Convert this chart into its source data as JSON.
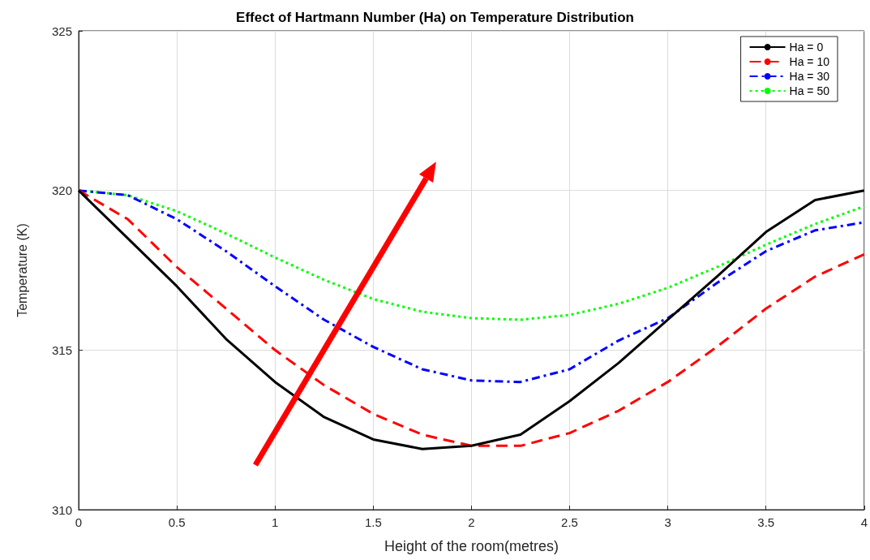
{
  "chart_data": {
    "type": "line",
    "title": "Effect of Hartmann Number (Ha) on Temperature Distribution",
    "xlabel": "Height of the room(metres)",
    "ylabel": "Temperature (K)",
    "x": [
      0,
      0.25,
      0.5,
      0.75,
      1,
      1.25,
      1.5,
      1.75,
      2,
      2.25,
      2.5,
      2.75,
      3,
      3.25,
      3.5,
      3.75,
      4
    ],
    "series": [
      {
        "name": "Ha = 0",
        "color": "#000000",
        "line_style": "solid",
        "values": [
          320,
          318.5,
          317.0,
          315.35,
          314.0,
          312.9,
          312.2,
          311.9,
          312.0,
          312.35,
          313.4,
          314.6,
          315.95,
          317.3,
          318.7,
          319.7,
          320
        ]
      },
      {
        "name": "Ha = 10",
        "color": "#ff0000",
        "line_style": "dashed",
        "values": [
          320,
          319.1,
          317.6,
          316.3,
          315.0,
          313.9,
          313.0,
          312.35,
          312.0,
          312.0,
          312.4,
          313.1,
          314.0,
          315.1,
          316.3,
          317.3,
          318.0
        ]
      },
      {
        "name": "Ha = 30",
        "color": "#0000ff",
        "line_style": "dashed",
        "values": [
          320,
          319.85,
          319.1,
          318.1,
          317.0,
          315.95,
          315.1,
          314.4,
          314.05,
          314.0,
          314.4,
          315.3,
          316.0,
          317.1,
          318.1,
          318.75,
          319.0
        ]
      },
      {
        "name": "Ha = 50",
        "color": "#00ff00",
        "line_style": "dotted",
        "values": [
          320,
          319.85,
          319.35,
          318.65,
          317.9,
          317.2,
          316.6,
          316.2,
          316.0,
          315.95,
          316.1,
          316.45,
          316.95,
          317.6,
          318.3,
          318.95,
          319.5
        ]
      }
    ],
    "xlim": [
      0,
      4
    ],
    "xticks": [
      0,
      0.5,
      1,
      1.5,
      2,
      2.5,
      3,
      3.5,
      4
    ],
    "ylim": [
      310,
      325
    ],
    "yticks": [
      310,
      315,
      320,
      325
    ],
    "grid": true,
    "legend": "top right",
    "marker": "none"
  }
}
